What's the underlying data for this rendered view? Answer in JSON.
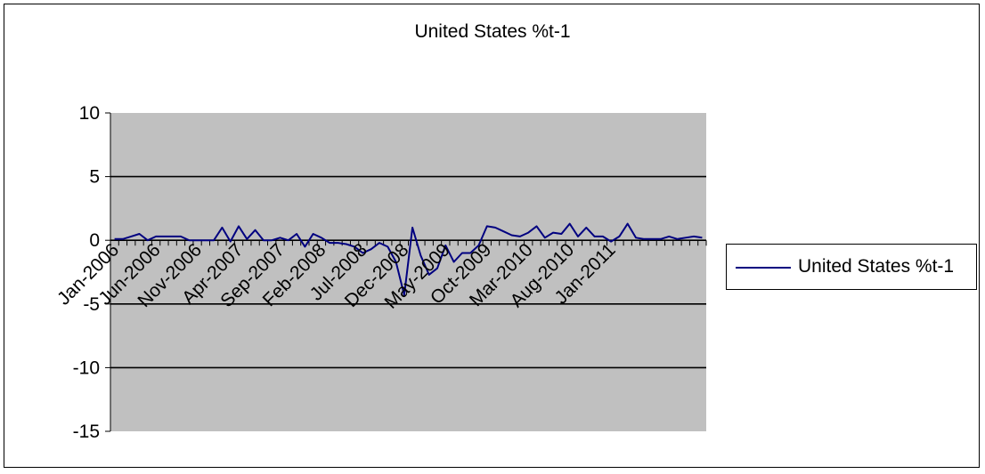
{
  "chart_data": {
    "type": "line",
    "title": "United States %t-1",
    "xlabel": "",
    "ylabel": "",
    "ylim": [
      -15,
      10
    ],
    "yticks": [
      10,
      5,
      0,
      -5,
      -10,
      -15
    ],
    "ytick_labels": [
      "10",
      "5",
      "0",
      "-5",
      "-10",
      "-15"
    ],
    "xtick_labels": [
      "Jan-2006",
      "Jun-2006",
      "Nov-2006",
      "Apr-2007",
      "Sep-2007",
      "Feb-2008",
      "Jul-2008",
      "Dec-2008",
      "May-2009",
      "Oct-2009",
      "Mar-2010",
      "Aug-2010",
      "Jan-2011"
    ],
    "xtick_every": 5,
    "grid": true,
    "legend": "right",
    "plot_background": "#c0c0c0",
    "series": [
      {
        "name": "United States %t-1",
        "color": "#000080",
        "x": [
          "Jan-2006",
          "Feb-2006",
          "Mar-2006",
          "Apr-2006",
          "May-2006",
          "Jun-2006",
          "Jul-2006",
          "Aug-2006",
          "Sep-2006",
          "Oct-2006",
          "Nov-2006",
          "Dec-2006",
          "Jan-2007",
          "Feb-2007",
          "Mar-2007",
          "Apr-2007",
          "May-2007",
          "Jun-2007",
          "Jul-2007",
          "Aug-2007",
          "Sep-2007",
          "Oct-2007",
          "Nov-2007",
          "Dec-2007",
          "Jan-2008",
          "Feb-2008",
          "Mar-2008",
          "Apr-2008",
          "May-2008",
          "Jun-2008",
          "Jul-2008",
          "Aug-2008",
          "Sep-2008",
          "Oct-2008",
          "Nov-2008",
          "Dec-2008",
          "Jan-2009",
          "Feb-2009",
          "Mar-2009",
          "Apr-2009",
          "May-2009",
          "Jun-2009",
          "Jul-2009",
          "Aug-2009",
          "Sep-2009",
          "Oct-2009",
          "Nov-2009",
          "Dec-2009",
          "Jan-2010",
          "Feb-2010",
          "Mar-2010",
          "Apr-2010",
          "May-2010",
          "Jun-2010",
          "Jul-2010",
          "Aug-2010",
          "Sep-2010",
          "Oct-2010",
          "Nov-2010",
          "Dec-2010",
          "Jan-2011",
          "Feb-2011",
          "Mar-2011",
          "Apr-2011",
          "May-2011",
          "Jun-2011",
          "Jul-2011",
          "Aug-2011",
          "Sep-2011",
          "Oct-2011",
          "Nov-2011",
          "Dec-2011"
        ],
        "values": [
          0.1,
          0.1,
          0.3,
          0.5,
          0,
          0.3,
          0.3,
          0.3,
          0.3,
          0,
          0,
          0,
          0,
          1.0,
          -0.1,
          1.1,
          0.1,
          0.8,
          0,
          0,
          0.2,
          0,
          0.5,
          -0.5,
          0.5,
          0.2,
          -0.2,
          -0.2,
          -0.3,
          -0.5,
          -1.0,
          -0.7,
          -0.2,
          -0.5,
          -1.7,
          -4.3,
          1.0,
          -1.2,
          -2.7,
          -2.2,
          -0.4,
          -1.7,
          -1.0,
          -1.0,
          -0.4,
          1.1,
          1.0,
          0.7,
          0.4,
          0.3,
          0.6,
          1.1,
          0.2,
          0.6,
          0.5,
          1.3,
          0.3,
          1.0,
          0.3,
          0.3,
          -0.1,
          0.3,
          1.3,
          0.2,
          0.1,
          0.1,
          0.1,
          0.3,
          0.1,
          0.2,
          0.3,
          0.2
        ]
      }
    ]
  }
}
